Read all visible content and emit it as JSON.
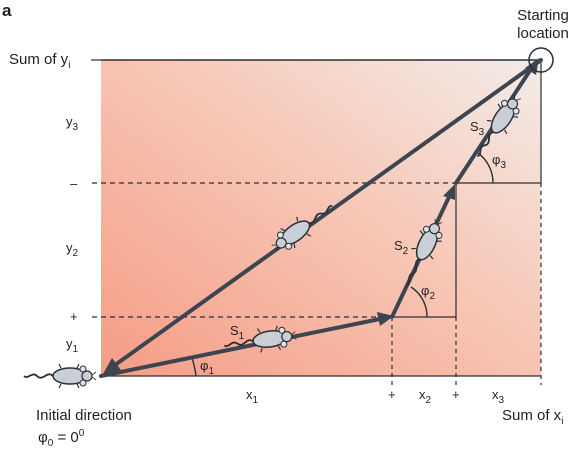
{
  "panel_label": "a",
  "corner_labels": {
    "start_line1": "Starting",
    "start_line2": "location",
    "sum_y": "Sum of y",
    "sum_y_sub": "i",
    "sum_x": "Sum of x",
    "sum_x_sub": "i",
    "initial_line1": "Initial direction",
    "initial_line2_base": "φ",
    "initial_line2_sub": "0",
    "initial_line2_value": " = 0",
    "initial_line2_sup": "0"
  },
  "y_axis": {
    "segments": [
      {
        "base": "y",
        "sub": "3"
      },
      {
        "base": "y",
        "sub": "2"
      },
      {
        "base": "y",
        "sub": "1"
      }
    ],
    "separators": [
      "–",
      "+"
    ]
  },
  "x_axis": {
    "segments": [
      {
        "base": "x",
        "sub": "1"
      },
      {
        "base": "x",
        "sub": "2"
      },
      {
        "base": "x",
        "sub": "3"
      }
    ],
    "separators": [
      "+",
      "+"
    ]
  },
  "steps": [
    {
      "label_base": "S",
      "label_sub": "1",
      "angle_base": "φ",
      "angle_sub": "1"
    },
    {
      "label_base": "S",
      "label_sub": "2",
      "angle_base": "φ",
      "angle_sub": "2"
    },
    {
      "label_base": "S",
      "label_sub": "3",
      "angle_base": "φ",
      "angle_sub": "3"
    }
  ],
  "colors": {
    "arrow": "#3d4550",
    "gradient_left": "#f5a18a",
    "gradient_right": "#f4ebe6",
    "mouse_fill": "#c9cfd6",
    "text": "#231f20"
  }
}
